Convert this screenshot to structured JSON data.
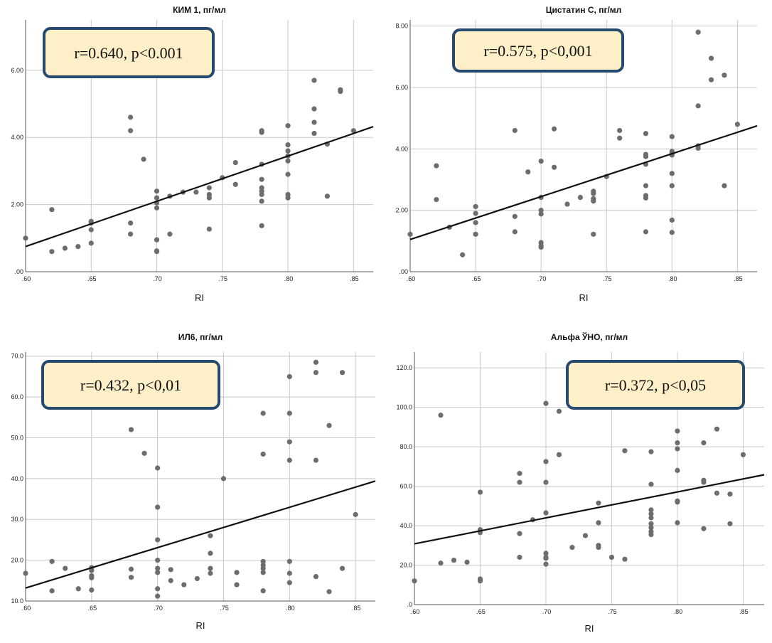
{
  "chart_data": [
    {
      "type": "scatter",
      "title": "КИМ 1, пг/мл",
      "xlabel": "RI",
      "ylabel": "",
      "xlim": [
        0.6,
        0.865
      ],
      "ylim": [
        0,
        7.5
      ],
      "xticks": [
        0.6,
        0.65,
        0.7,
        0.75,
        0.8,
        0.85
      ],
      "xtick_labels": [
        ".60",
        ".65",
        ".70",
        ".75",
        ".80",
        ".85"
      ],
      "yticks": [
        0,
        2,
        4,
        6
      ],
      "ytick_labels": [
        ".00",
        "2.00",
        "4.00",
        "6.00"
      ],
      "stat_text": "r=0.640, p<0.001",
      "fit_line": [
        [
          0.6,
          0.75
        ],
        [
          0.865,
          4.32
        ]
      ],
      "points": [
        [
          0.6,
          1.0
        ],
        [
          0.62,
          1.85
        ],
        [
          0.62,
          0.6
        ],
        [
          0.63,
          0.7
        ],
        [
          0.64,
          0.75
        ],
        [
          0.65,
          1.5
        ],
        [
          0.65,
          1.45
        ],
        [
          0.65,
          1.25
        ],
        [
          0.65,
          0.85
        ],
        [
          0.68,
          4.6
        ],
        [
          0.68,
          4.2
        ],
        [
          0.68,
          1.45
        ],
        [
          0.68,
          1.12
        ],
        [
          0.69,
          3.35
        ],
        [
          0.7,
          2.4
        ],
        [
          0.7,
          2.2
        ],
        [
          0.7,
          2.05
        ],
        [
          0.7,
          1.9
        ],
        [
          0.7,
          0.95
        ],
        [
          0.7,
          0.62
        ],
        [
          0.7,
          0.6
        ],
        [
          0.71,
          2.25
        ],
        [
          0.71,
          1.12
        ],
        [
          0.72,
          2.37
        ],
        [
          0.73,
          2.37
        ],
        [
          0.74,
          2.5
        ],
        [
          0.74,
          2.3
        ],
        [
          0.74,
          2.2
        ],
        [
          0.74,
          1.27
        ],
        [
          0.75,
          2.8
        ],
        [
          0.76,
          3.25
        ],
        [
          0.76,
          2.6
        ],
        [
          0.78,
          4.2
        ],
        [
          0.78,
          4.15
        ],
        [
          0.78,
          3.2
        ],
        [
          0.78,
          2.75
        ],
        [
          0.78,
          2.5
        ],
        [
          0.78,
          2.4
        ],
        [
          0.78,
          2.3
        ],
        [
          0.78,
          2.1
        ],
        [
          0.78,
          1.37
        ],
        [
          0.8,
          4.35
        ],
        [
          0.8,
          3.78
        ],
        [
          0.8,
          3.6
        ],
        [
          0.8,
          3.45
        ],
        [
          0.8,
          3.3
        ],
        [
          0.8,
          2.9
        ],
        [
          0.8,
          2.3
        ],
        [
          0.8,
          2.2
        ],
        [
          0.82,
          5.7
        ],
        [
          0.82,
          4.85
        ],
        [
          0.82,
          4.45
        ],
        [
          0.82,
          4.12
        ],
        [
          0.83,
          3.8
        ],
        [
          0.83,
          2.25
        ],
        [
          0.84,
          5.42
        ],
        [
          0.84,
          5.37
        ],
        [
          0.85,
          4.2
        ]
      ]
    },
    {
      "type": "scatter",
      "title": "Цистатин С, пг/мл",
      "xlabel": "RI",
      "ylabel": "",
      "xlim": [
        0.6,
        0.865
      ],
      "ylim": [
        0,
        8.2
      ],
      "xticks": [
        0.6,
        0.65,
        0.7,
        0.75,
        0.8,
        0.85
      ],
      "xtick_labels": [
        ".60",
        ".65",
        ".70",
        ".75",
        ".80",
        ".85"
      ],
      "yticks": [
        0,
        2,
        4,
        6,
        8
      ],
      "ytick_labels": [
        ".00",
        "2.00",
        "4.00",
        "6.00",
        "8.00"
      ],
      "stat_text": "r=0.575, p<0,001",
      "fit_line": [
        [
          0.6,
          1.05
        ],
        [
          0.865,
          4.75
        ]
      ],
      "points": [
        [
          0.6,
          1.22
        ],
        [
          0.62,
          3.45
        ],
        [
          0.62,
          2.35
        ],
        [
          0.63,
          1.45
        ],
        [
          0.64,
          0.55
        ],
        [
          0.65,
          2.12
        ],
        [
          0.65,
          1.9
        ],
        [
          0.65,
          1.6
        ],
        [
          0.65,
          1.22
        ],
        [
          0.68,
          4.6
        ],
        [
          0.68,
          1.8
        ],
        [
          0.68,
          1.3
        ],
        [
          0.69,
          3.25
        ],
        [
          0.7,
          3.6
        ],
        [
          0.7,
          2.42
        ],
        [
          0.7,
          2.0
        ],
        [
          0.7,
          1.88
        ],
        [
          0.7,
          0.95
        ],
        [
          0.7,
          0.85
        ],
        [
          0.7,
          0.8
        ],
        [
          0.71,
          4.65
        ],
        [
          0.71,
          3.4
        ],
        [
          0.72,
          2.2
        ],
        [
          0.73,
          2.42
        ],
        [
          0.74,
          2.62
        ],
        [
          0.74,
          2.55
        ],
        [
          0.74,
          2.38
        ],
        [
          0.74,
          2.3
        ],
        [
          0.74,
          1.22
        ],
        [
          0.75,
          3.1
        ],
        [
          0.76,
          4.6
        ],
        [
          0.76,
          4.35
        ],
        [
          0.78,
          4.5
        ],
        [
          0.78,
          3.82
        ],
        [
          0.78,
          3.75
        ],
        [
          0.78,
          3.5
        ],
        [
          0.78,
          2.8
        ],
        [
          0.78,
          2.48
        ],
        [
          0.78,
          2.4
        ],
        [
          0.78,
          1.3
        ],
        [
          0.8,
          4.4
        ],
        [
          0.8,
          3.92
        ],
        [
          0.8,
          3.85
        ],
        [
          0.8,
          3.8
        ],
        [
          0.8,
          3.2
        ],
        [
          0.8,
          2.8
        ],
        [
          0.8,
          1.68
        ],
        [
          0.8,
          1.28
        ],
        [
          0.82,
          7.8
        ],
        [
          0.82,
          5.4
        ],
        [
          0.82,
          4.1
        ],
        [
          0.82,
          4.02
        ],
        [
          0.83,
          6.95
        ],
        [
          0.83,
          6.25
        ],
        [
          0.84,
          6.4
        ],
        [
          0.84,
          2.8
        ],
        [
          0.85,
          4.8
        ]
      ]
    },
    {
      "type": "scatter",
      "title": "ИЛ6, пг/мл",
      "xlabel": "RI",
      "ylabel": "",
      "xlim": [
        0.6,
        0.865
      ],
      "ylim": [
        10,
        71
      ],
      "xticks": [
        0.6,
        0.65,
        0.7,
        0.75,
        0.8,
        0.85
      ],
      "xtick_labels": [
        ".60",
        ".65",
        ".70",
        ".75",
        ".80",
        ".85"
      ],
      "yticks": [
        10,
        20,
        30,
        40,
        50,
        60,
        70
      ],
      "ytick_labels": [
        "10.0",
        "20.0",
        "30.0",
        "40.0",
        "50.0",
        "60.0",
        "70.0"
      ],
      "stat_text": "r=0.432, p<0,01",
      "fit_line": [
        [
          0.6,
          13.2
        ],
        [
          0.865,
          39.4
        ]
      ],
      "points": [
        [
          0.6,
          16.8
        ],
        [
          0.62,
          19.7
        ],
        [
          0.62,
          12.5
        ],
        [
          0.63,
          18.0
        ],
        [
          0.64,
          13.0
        ],
        [
          0.65,
          18.2
        ],
        [
          0.65,
          17.5
        ],
        [
          0.65,
          16.2
        ],
        [
          0.65,
          15.7
        ],
        [
          0.65,
          12.7
        ],
        [
          0.68,
          52.0
        ],
        [
          0.68,
          17.8
        ],
        [
          0.68,
          15.8
        ],
        [
          0.69,
          46.2
        ],
        [
          0.7,
          42.6
        ],
        [
          0.7,
          33.0
        ],
        [
          0.7,
          25.0
        ],
        [
          0.7,
          20.0
        ],
        [
          0.7,
          18.0
        ],
        [
          0.7,
          17.0
        ],
        [
          0.7,
          13.0
        ],
        [
          0.7,
          11.2
        ],
        [
          0.71,
          17.7
        ],
        [
          0.71,
          15.0
        ],
        [
          0.72,
          14.0
        ],
        [
          0.73,
          15.5
        ],
        [
          0.74,
          26.0
        ],
        [
          0.74,
          21.7
        ],
        [
          0.74,
          18.0
        ],
        [
          0.74,
          16.8
        ],
        [
          0.75,
          40.0
        ],
        [
          0.76,
          17.0
        ],
        [
          0.76,
          14.0
        ],
        [
          0.78,
          56.0
        ],
        [
          0.78,
          46.0
        ],
        [
          0.78,
          19.7
        ],
        [
          0.78,
          18.8
        ],
        [
          0.78,
          18.0
        ],
        [
          0.78,
          17.0
        ],
        [
          0.78,
          12.5
        ],
        [
          0.8,
          65.0
        ],
        [
          0.8,
          56.0
        ],
        [
          0.8,
          49.0
        ],
        [
          0.8,
          44.5
        ],
        [
          0.8,
          19.7
        ],
        [
          0.8,
          16.8
        ],
        [
          0.8,
          14.5
        ],
        [
          0.82,
          68.5
        ],
        [
          0.82,
          66.0
        ],
        [
          0.82,
          44.5
        ],
        [
          0.82,
          16.0
        ],
        [
          0.83,
          53.0
        ],
        [
          0.83,
          12.3
        ],
        [
          0.84,
          66.0
        ],
        [
          0.84,
          18.0
        ],
        [
          0.85,
          31.2
        ]
      ]
    },
    {
      "type": "scatter",
      "title": "Альфа ЎНО, пг/мл",
      "xlabel": "RI",
      "ylabel": "",
      "xlim": [
        0.6,
        0.866
      ],
      "ylim": [
        0,
        128
      ],
      "xticks": [
        0.6,
        0.65,
        0.7,
        0.75,
        0.8,
        0.85
      ],
      "xtick_labels": [
        ".60",
        ".65",
        ".70",
        ".75",
        ".80",
        ".85"
      ],
      "yticks": [
        0,
        20,
        40,
        60,
        80,
        100,
        120
      ],
      "ytick_labels": [
        ".0",
        "20.0",
        "40.0",
        "60.0",
        "80.0",
        "100.0",
        "120.0"
      ],
      "stat_text": "r=0.372, p<0,05",
      "fit_line": [
        [
          0.6,
          30.8
        ],
        [
          0.866,
          65.8
        ]
      ],
      "points": [
        [
          0.6,
          12.0
        ],
        [
          0.62,
          96.0
        ],
        [
          0.62,
          21.0
        ],
        [
          0.63,
          22.5
        ],
        [
          0.64,
          21.5
        ],
        [
          0.65,
          57.0
        ],
        [
          0.65,
          38.0
        ],
        [
          0.65,
          36.5
        ],
        [
          0.65,
          13.0
        ],
        [
          0.65,
          12.0
        ],
        [
          0.68,
          66.5
        ],
        [
          0.68,
          62.0
        ],
        [
          0.68,
          36.0
        ],
        [
          0.68,
          24.0
        ],
        [
          0.69,
          43.0
        ],
        [
          0.7,
          102.0
        ],
        [
          0.7,
          72.5
        ],
        [
          0.7,
          62.0
        ],
        [
          0.7,
          46.5
        ],
        [
          0.7,
          26.0
        ],
        [
          0.7,
          24.0
        ],
        [
          0.7,
          23.5
        ],
        [
          0.7,
          20.5
        ],
        [
          0.71,
          98.0
        ],
        [
          0.71,
          76.0
        ],
        [
          0.72,
          29.0
        ],
        [
          0.73,
          35.0
        ],
        [
          0.74,
          51.5
        ],
        [
          0.74,
          41.5
        ],
        [
          0.74,
          30.0
        ],
        [
          0.74,
          29.0
        ],
        [
          0.75,
          24.0
        ],
        [
          0.76,
          78.0
        ],
        [
          0.76,
          23.0
        ],
        [
          0.78,
          77.5
        ],
        [
          0.78,
          61.0
        ],
        [
          0.78,
          48.0
        ],
        [
          0.78,
          46.0
        ],
        [
          0.78,
          44.0
        ],
        [
          0.78,
          41.0
        ],
        [
          0.78,
          39.0
        ],
        [
          0.78,
          37.0
        ],
        [
          0.78,
          35.5
        ],
        [
          0.8,
          88.0
        ],
        [
          0.8,
          82.0
        ],
        [
          0.8,
          79.0
        ],
        [
          0.8,
          68.0
        ],
        [
          0.8,
          52.5
        ],
        [
          0.8,
          52.0
        ],
        [
          0.8,
          41.5
        ],
        [
          0.82,
          82.0
        ],
        [
          0.82,
          63.0
        ],
        [
          0.82,
          62.0
        ],
        [
          0.82,
          38.5
        ],
        [
          0.83,
          89.0
        ],
        [
          0.83,
          56.5
        ],
        [
          0.84,
          56.0
        ],
        [
          0.84,
          41.0
        ],
        [
          0.85,
          76.0
        ]
      ]
    }
  ]
}
